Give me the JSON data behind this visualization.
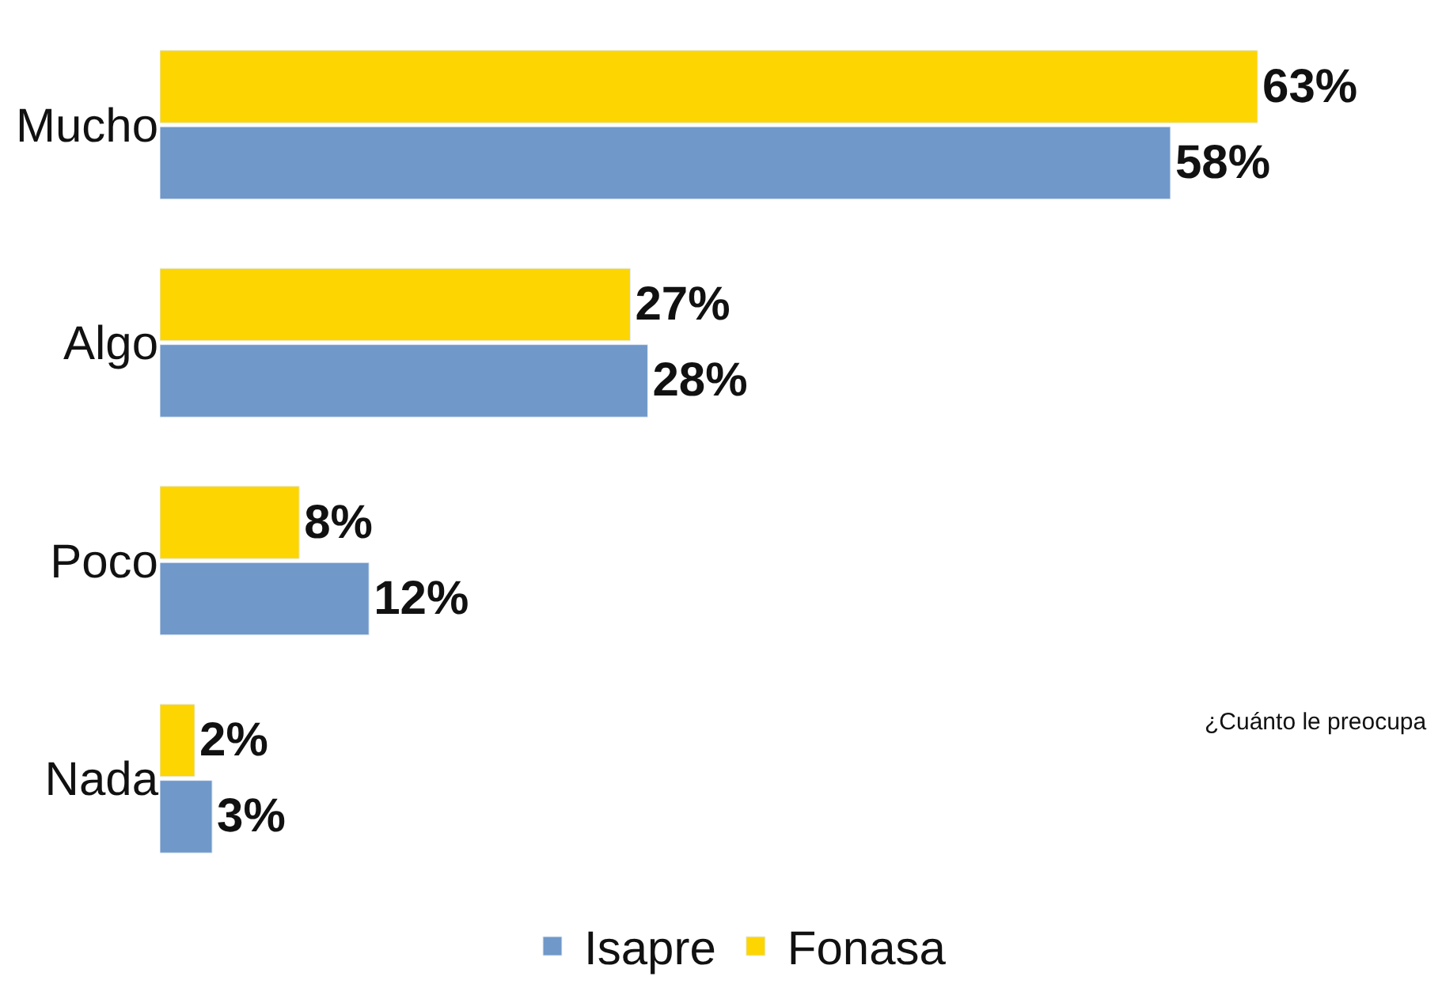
{
  "chart_data": {
    "type": "bar",
    "orientation": "horizontal",
    "categories": [
      "Mucho",
      "Algo",
      "Poco",
      "Nada"
    ],
    "series": [
      {
        "name": "Fonasa",
        "color": "#fdd500",
        "values": [
          63,
          27,
          8,
          2
        ],
        "value_labels": [
          "63%",
          "27%",
          "8%",
          "2%"
        ]
      },
      {
        "name": "Isapre",
        "color": "#7098c9",
        "values": [
          58,
          28,
          12,
          3
        ],
        "value_labels": [
          "58%",
          "28%",
          "12%",
          "3%"
        ]
      }
    ],
    "annotations": [
      "¿Cuánto le preocupa"
    ],
    "tick_labels": "y",
    "legend": "bottom"
  }
}
